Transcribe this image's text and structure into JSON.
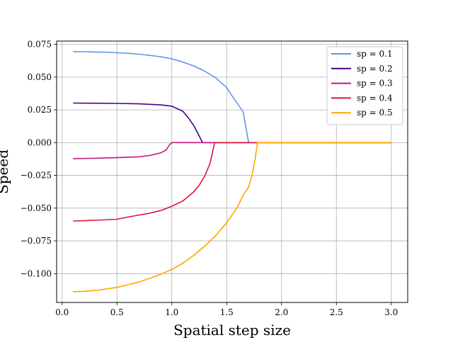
{
  "chart_data": {
    "type": "line",
    "title": "",
    "xlabel": "Spatial step size",
    "ylabel": "Speed",
    "xlim": [
      -0.05,
      3.15
    ],
    "ylim": [
      -0.122,
      0.0775
    ],
    "xticks": [
      0.0,
      0.5,
      1.0,
      1.5,
      2.0,
      2.5,
      3.0
    ],
    "xtick_labels": [
      "0.0",
      "0.5",
      "1.0",
      "1.5",
      "2.0",
      "2.5",
      "3.0"
    ],
    "yticks": [
      0.075,
      0.05,
      0.025,
      0.0,
      -0.025,
      -0.05,
      -0.075,
      -0.1
    ],
    "ytick_labels": [
      "0.075",
      "0.050",
      "0.025",
      "0.000",
      "−0.025",
      "−0.050",
      "−0.075",
      "−0.100"
    ],
    "grid": true,
    "legend_position": "top-right",
    "series": [
      {
        "name": "sp = 0.1",
        "color": "#6495ED",
        "x": [
          0.1,
          0.2,
          0.3,
          0.4,
          0.5,
          0.6,
          0.7,
          0.8,
          0.9,
          1.0,
          1.1,
          1.2,
          1.3,
          1.4,
          1.5,
          1.55,
          1.6,
          1.65,
          1.7,
          1.75,
          1.8,
          2.0,
          2.5,
          3.0
        ],
        "y": [
          0.0695,
          0.0694,
          0.0692,
          0.069,
          0.0686,
          0.0682,
          0.0675,
          0.0666,
          0.0655,
          0.064,
          0.0615,
          0.0585,
          0.0545,
          0.0495,
          0.042,
          0.0355,
          0.0295,
          0.0235,
          0.0,
          0.0,
          0.0,
          0.0,
          0.0,
          0.0
        ]
      },
      {
        "name": "sp = 0.2",
        "color": "#4B0082",
        "x": [
          0.1,
          0.3,
          0.5,
          0.7,
          0.9,
          1.0,
          1.1,
          1.15,
          1.2,
          1.25,
          1.28,
          1.3,
          1.5,
          1.7
        ],
        "y": [
          0.0302,
          0.0301,
          0.0299,
          0.0296,
          0.0288,
          0.0278,
          0.024,
          0.019,
          0.013,
          0.005,
          0.0,
          0.0,
          0.0,
          0.0
        ]
      },
      {
        "name": "sp = 0.3",
        "color": "#C71585",
        "x": [
          0.1,
          0.3,
          0.5,
          0.7,
          0.8,
          0.9,
          0.95,
          0.98,
          1.0,
          1.2,
          1.5,
          2.0,
          2.5,
          3.0
        ],
        "y": [
          -0.0122,
          -0.0119,
          -0.0115,
          -0.0108,
          -0.0098,
          -0.0078,
          -0.0055,
          -0.0015,
          0.0,
          0.0,
          0.0,
          0.0,
          0.0,
          0.0
        ]
      },
      {
        "name": "sp = 0.4",
        "color": "#DC143C",
        "x": [
          0.1,
          0.3,
          0.5,
          0.6,
          0.7,
          0.8,
          0.9,
          1.0,
          1.1,
          1.2,
          1.25,
          1.3,
          1.35,
          1.39,
          1.5,
          2.0,
          2.5,
          3.0
        ],
        "y": [
          -0.0598,
          -0.0593,
          -0.0585,
          -0.0568,
          -0.0553,
          -0.0538,
          -0.0518,
          -0.0485,
          -0.0445,
          -0.0375,
          -0.0325,
          -0.0255,
          -0.0155,
          0.0,
          0.0,
          0.0,
          0.0,
          0.0
        ]
      },
      {
        "name": "sp = 0.5",
        "color": "#FFA500",
        "x": [
          0.1,
          0.2,
          0.3,
          0.4,
          0.5,
          0.6,
          0.7,
          0.8,
          0.9,
          1.0,
          1.1,
          1.2,
          1.3,
          1.4,
          1.5,
          1.6,
          1.65,
          1.7,
          1.73,
          1.76,
          1.78,
          2.0,
          2.5,
          3.0
        ],
        "y": [
          -0.1138,
          -0.1135,
          -0.1128,
          -0.1118,
          -0.1105,
          -0.1085,
          -0.1065,
          -0.1035,
          -0.1005,
          -0.0968,
          -0.092,
          -0.086,
          -0.079,
          -0.071,
          -0.061,
          -0.049,
          -0.04,
          -0.034,
          -0.025,
          -0.012,
          0.0,
          0.0,
          0.0,
          0.0
        ]
      }
    ]
  }
}
